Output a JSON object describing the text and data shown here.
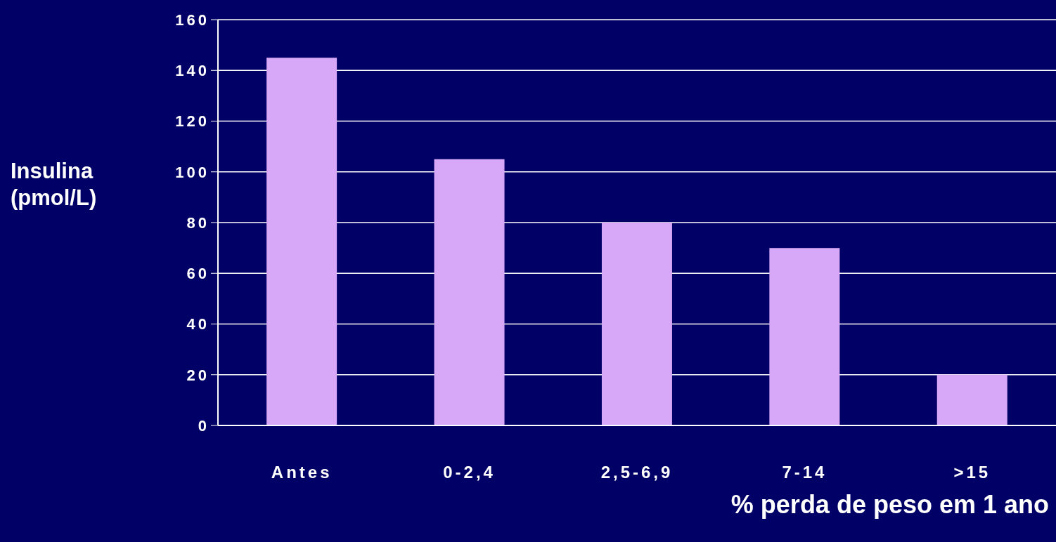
{
  "chart_data": {
    "type": "bar",
    "xlabel": "% perda de peso em 1 ano",
    "ylabel": "Insulina (pmol/L)",
    "categories": [
      "Antes",
      "0-2,4",
      "2,5-6,9",
      "7-14",
      ">15"
    ],
    "values": [
      145,
      105,
      80,
      70,
      20
    ],
    "color": "#d8a8f8",
    "ylim": [
      0,
      160
    ],
    "yticks": [
      0,
      20,
      40,
      60,
      80,
      100,
      120,
      140,
      160
    ],
    "grid": "y"
  }
}
